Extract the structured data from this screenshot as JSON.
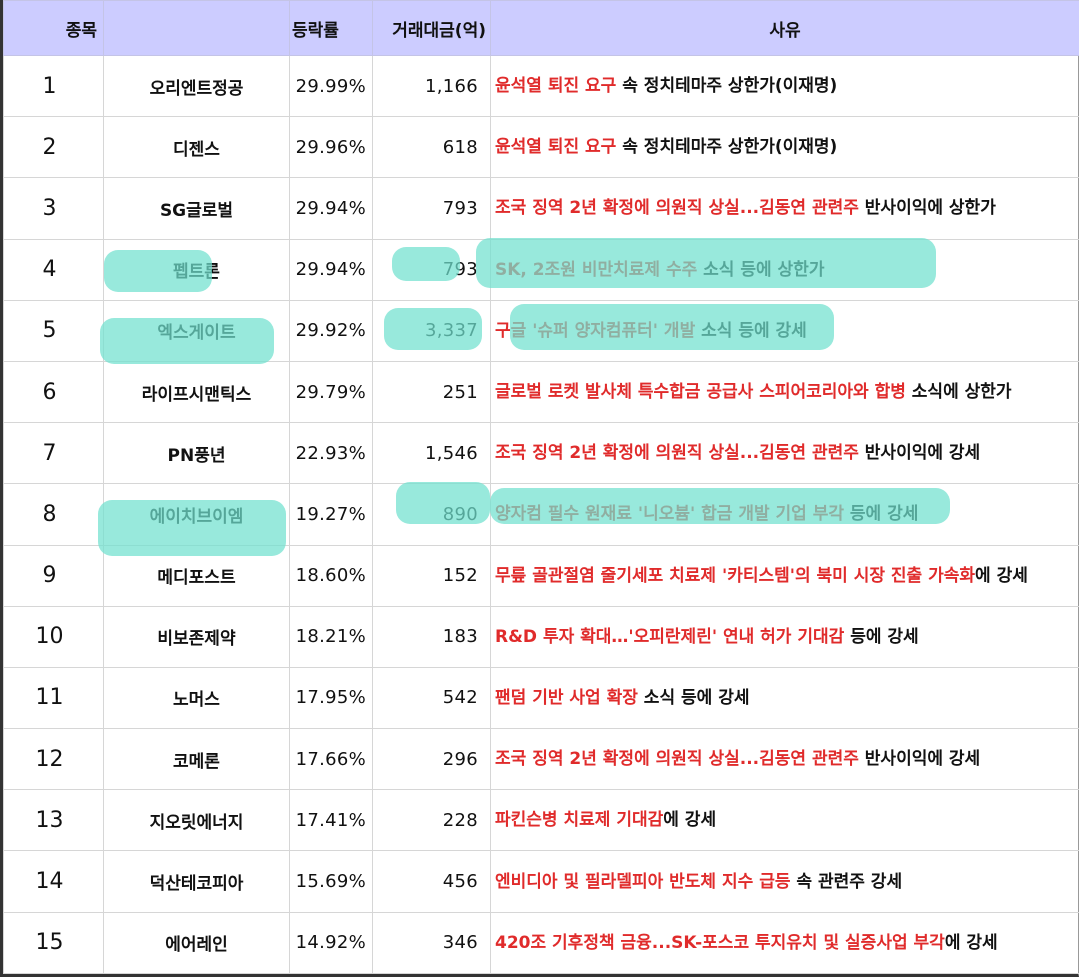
{
  "headers": {
    "rank": "종목",
    "rate": "등락률",
    "volume": "거래대금(억)",
    "reason": "사유"
  },
  "highlight_color": "#70e0cf",
  "rows": [
    {
      "rank": "1",
      "name": "오리엔트정공",
      "rate": "29.99%",
      "volume": "1,166",
      "reason_red": "윤석열 퇴진 요구",
      "reason_rest": " 속 정치테마주 상한가(이재명)"
    },
    {
      "rank": "2",
      "name": "디젠스",
      "rate": "29.96%",
      "volume": "618",
      "reason_red": "윤석열 퇴진 요구",
      "reason_rest": " 속 정치테마주 상한가(이재명)"
    },
    {
      "rank": "3",
      "name": "SG글로벌",
      "rate": "29.94%",
      "volume": "793",
      "reason_red": "조국 징역 2년 확정에 의원직 상실...김동연 관련주",
      "reason_rest": " 반사이익에 상한가"
    },
    {
      "rank": "4",
      "name": "펩트론",
      "rate": "29.94%",
      "volume": "793",
      "reason_red": "SK, 2조원 비만치료제 수주",
      "reason_rest": " 소식 등에 상한가"
    },
    {
      "rank": "5",
      "name": "엑스게이트",
      "rate": "29.92%",
      "volume": "3,337",
      "reason_red": "구글 '슈퍼 양자컴퓨터' 개발",
      "reason_rest": " 소식 등에 강세"
    },
    {
      "rank": "6",
      "name": "라이프시맨틱스",
      "rate": "29.79%",
      "volume": "251",
      "reason_red": "글로벌 로켓 발사체 특수합금 공급사 스피어코리아와 합병",
      "reason_rest": " 소식에 상한가"
    },
    {
      "rank": "7",
      "name": "PN풍년",
      "rate": "22.93%",
      "volume": "1,546",
      "reason_red": "조국 징역 2년 확정에 의원직 상실...김동연 관련주",
      "reason_rest": " 반사이익에 강세"
    },
    {
      "rank": "8",
      "name": "에이치브이엠",
      "rate": "19.27%",
      "volume": "890",
      "reason_red": "양자컴 필수 원재료 '니오븀' 합금 개발 기업 부각",
      "reason_rest": " 등에 강세"
    },
    {
      "rank": "9",
      "name": "메디포스트",
      "rate": "18.60%",
      "volume": "152",
      "reason_red": "무릎 골관절염 줄기세포 치료제 '카티스템'의 북미 시장 진출 가속화",
      "reason_rest": "에 강세"
    },
    {
      "rank": "10",
      "name": "비보존제약",
      "rate": "18.21%",
      "volume": "183",
      "reason_red": "R&D 투자 확대…'오피란제린' 연내 허가 기대감",
      "reason_rest": " 등에 강세"
    },
    {
      "rank": "11",
      "name": "노머스",
      "rate": "17.95%",
      "volume": "542",
      "reason_red": "팬덤 기반 사업 확장",
      "reason_rest": " 소식 등에 강세"
    },
    {
      "rank": "12",
      "name": "코메론",
      "rate": "17.66%",
      "volume": "296",
      "reason_red": "조국 징역 2년 확정에 의원직 상실...김동연 관련주",
      "reason_rest": " 반사이익에 강세"
    },
    {
      "rank": "13",
      "name": "지오릿에너지",
      "rate": "17.41%",
      "volume": "228",
      "reason_red": "파킨슨병 치료제 기대감",
      "reason_rest": "에 강세"
    },
    {
      "rank": "14",
      "name": "덕산테코피아",
      "rate": "15.69%",
      "volume": "456",
      "reason_red": "엔비디아 및 필라델피아 반도체 지수 급등",
      "reason_rest": " 속 관련주 강세"
    },
    {
      "rank": "15",
      "name": "에어레인",
      "rate": "14.92%",
      "volume": "346",
      "reason_red": "420조 기후정책 금융...SK-포스코 투지유치 및 실증사업 부각",
      "reason_rest": "에 강세"
    }
  ]
}
